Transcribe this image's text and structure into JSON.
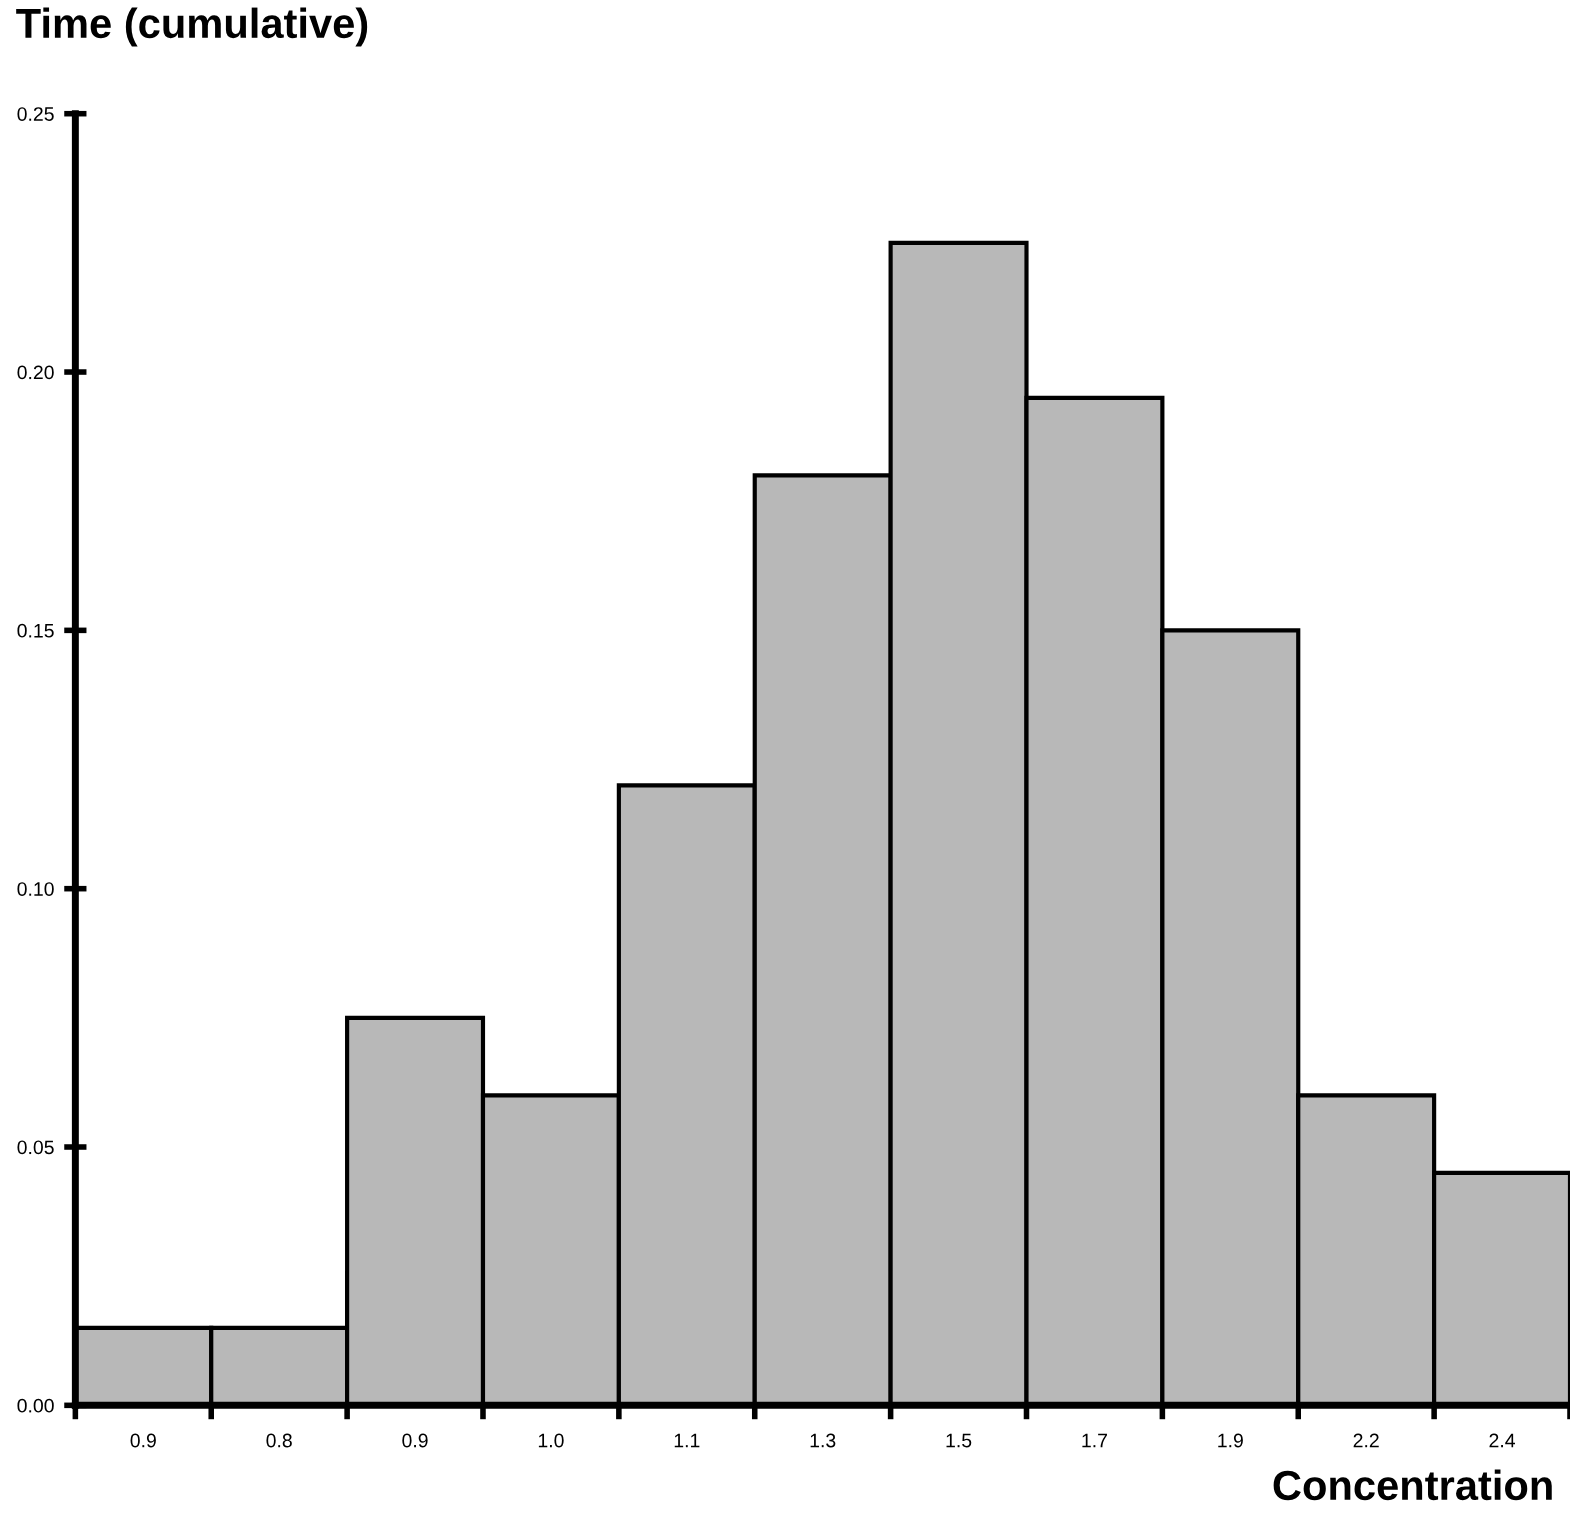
{
  "chart_data": {
    "type": "bar",
    "ylabel": "Time (cumulative)",
    "xlabel": "Concentration",
    "categories": [
      "0.9",
      "0.8",
      "0.9",
      "1.0",
      "1.1",
      "1.3",
      "1.5",
      "1.7",
      "1.9",
      "2.2",
      "2.4"
    ],
    "series": [
      {
        "color": "#b8b8b8",
        "values": [
          0.015,
          0.015,
          0.075,
          0.06,
          0.12,
          0.18,
          0.225,
          0.195,
          0.15,
          0.06,
          0.045
        ]
      }
    ],
    "ylim": [
      0,
      0.25
    ],
    "yticks": [
      {
        "value": 0,
        "label": "0.00"
      },
      {
        "value": 0.05,
        "label": "0.05"
      },
      {
        "value": 0.1,
        "label": "0.10"
      },
      {
        "value": 0.15,
        "label": "0.15"
      },
      {
        "value": 0.2,
        "label": "0.20"
      },
      {
        "value": 0.25,
        "label": "0.25"
      }
    ],
    "grid": false,
    "legend": false
  }
}
